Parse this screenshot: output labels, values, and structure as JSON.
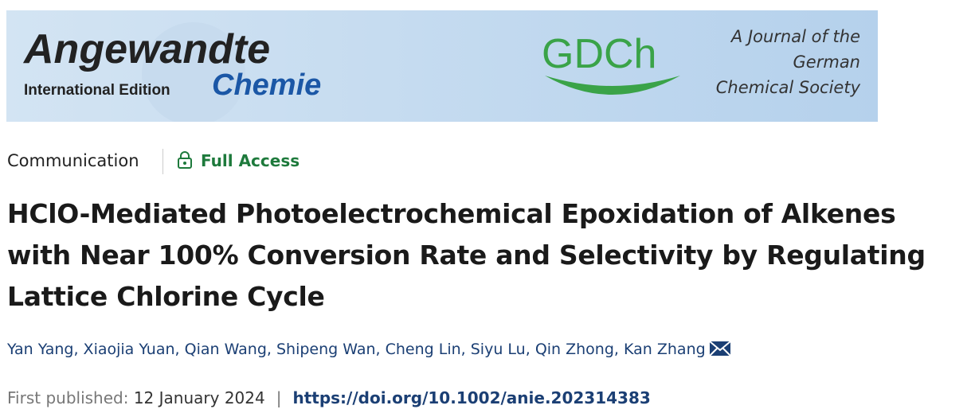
{
  "banner": {
    "journal_name": "Angewandte",
    "edition": "International Edition",
    "journal_subname": "Chemie",
    "society_logo": "GDCh",
    "society_lines": [
      "A Journal of the",
      "German",
      "Chemical Society"
    ]
  },
  "article": {
    "type": "Communication",
    "access": "Full Access",
    "title_lines": [
      "HClO-Mediated Photoelectrochemical Epoxidation of Alkenes",
      "with Near 100% Conversion Rate and Selectivity by Regulating",
      "Lattice Chlorine Cycle"
    ],
    "authors": [
      "Yan Yang",
      "Xiaojia Yuan",
      "Qian Wang",
      "Shipeng Wan",
      "Cheng Lin",
      "Siyu Lu",
      "Qin Zhong",
      "Kan Zhang"
    ],
    "author_separator": ",",
    "published_label": "First published:",
    "published_date": "12 January 2024",
    "divider": "|",
    "doi": "https://doi.org/10.1002/anie.202314383"
  }
}
